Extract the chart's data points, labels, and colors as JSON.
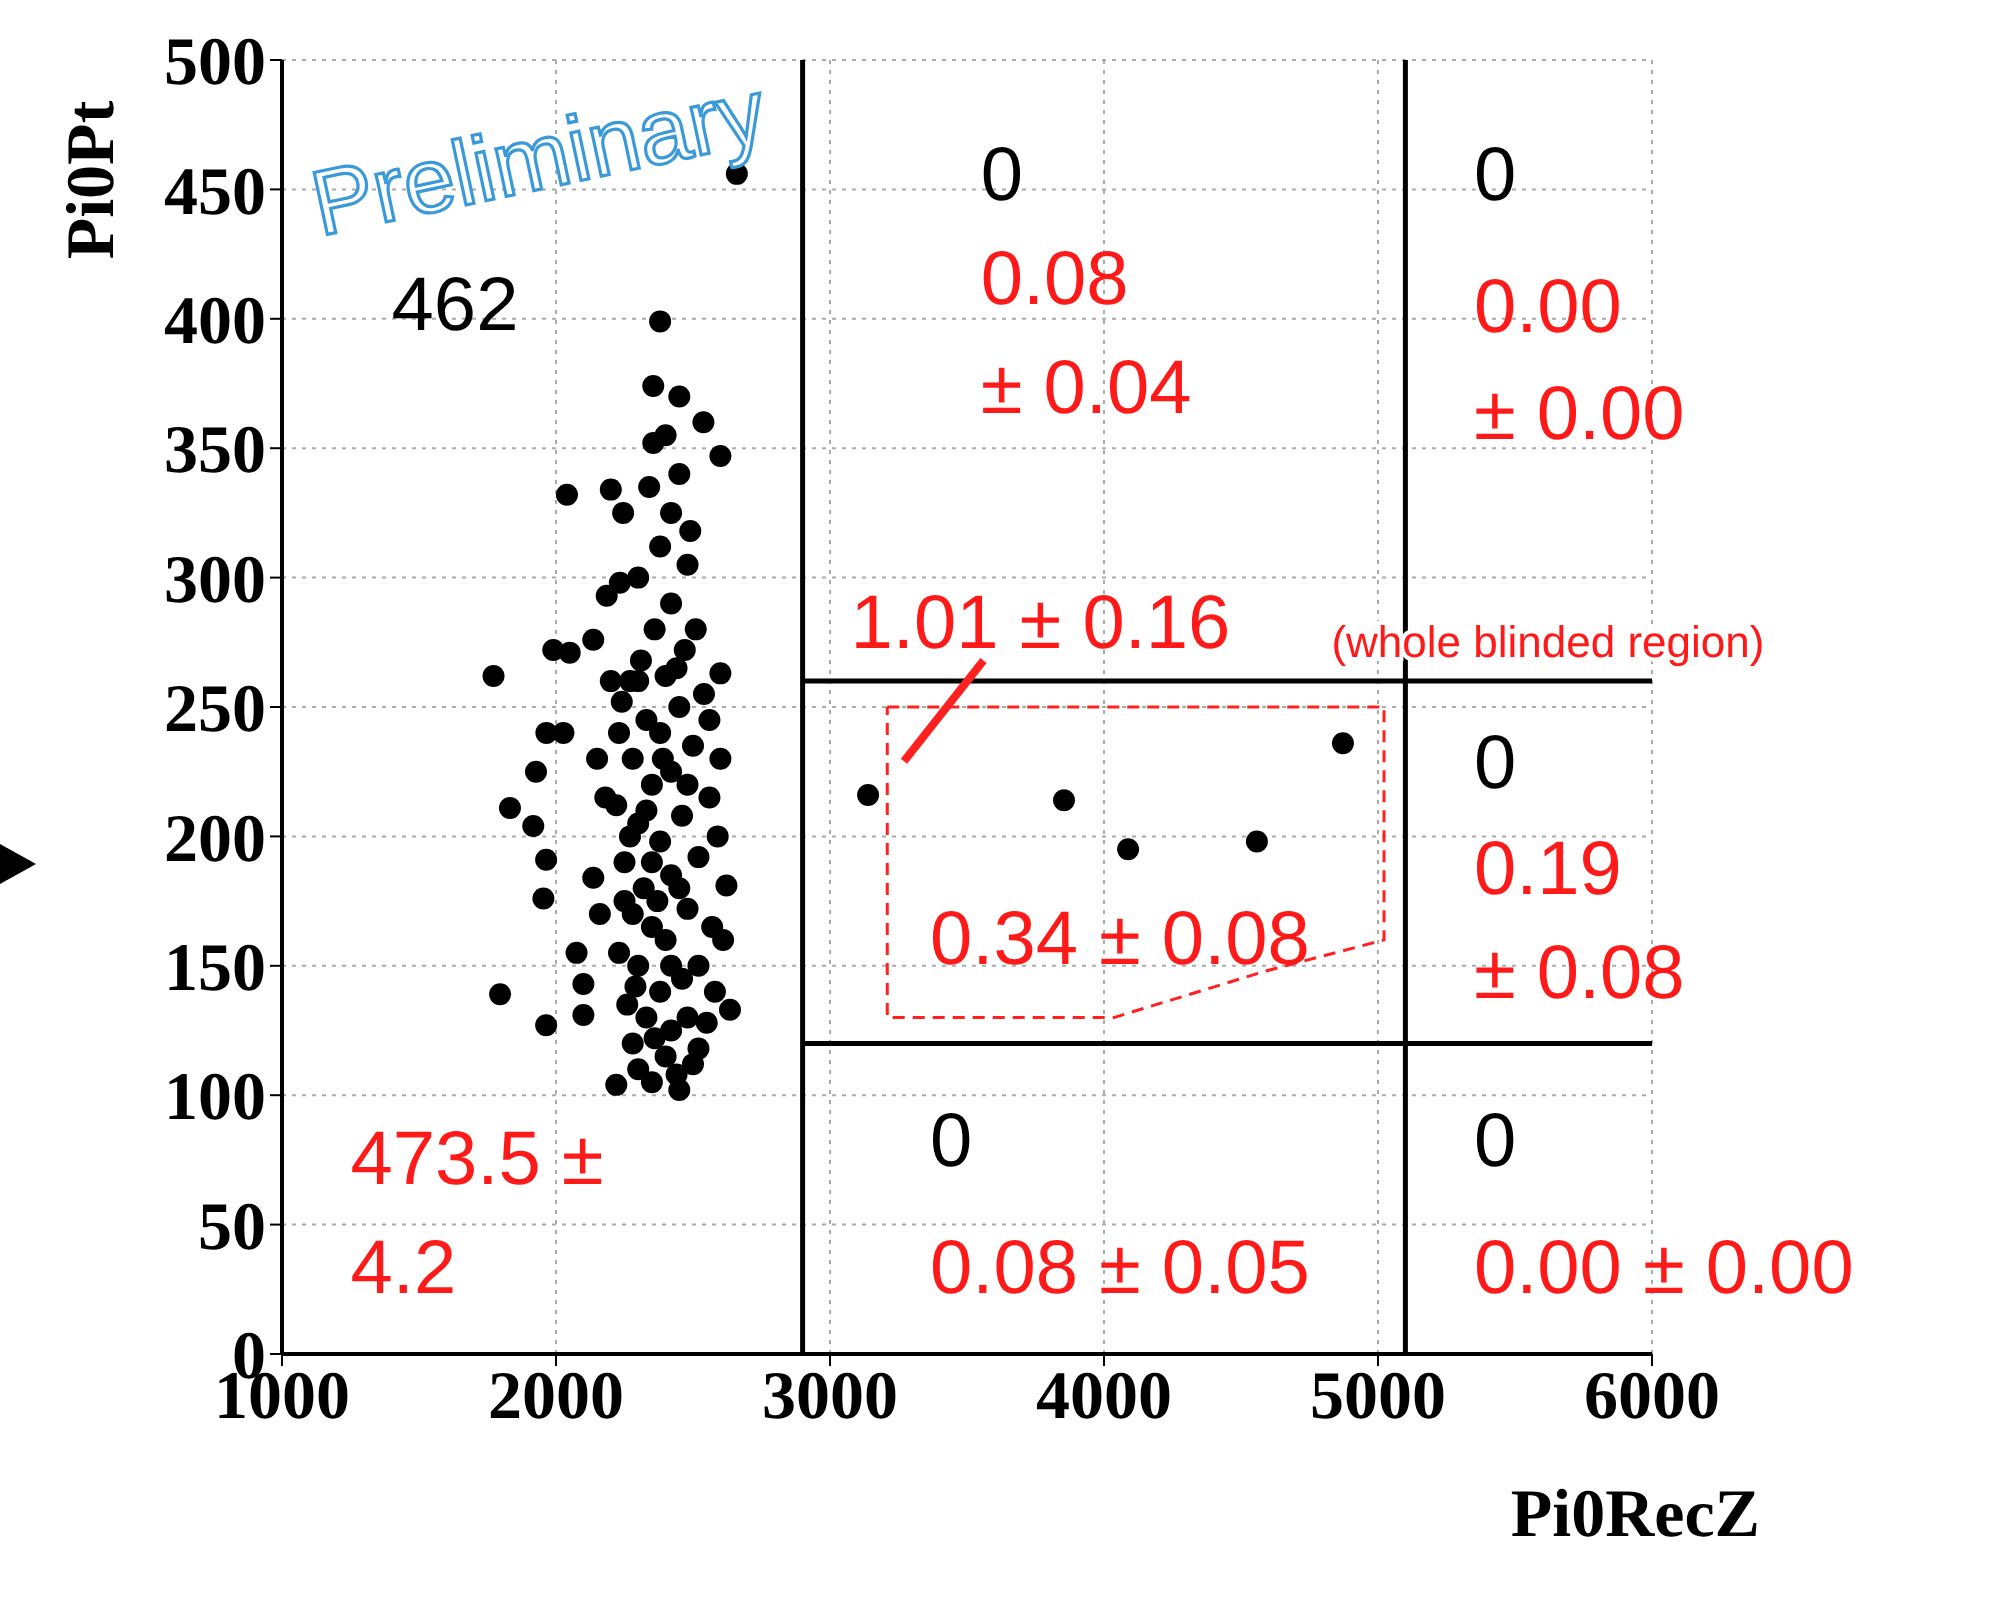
{
  "chart_data": {
    "type": "scatter",
    "xlabel": "Pi0RecZ",
    "ylabel": "Pi0Pt",
    "xlim": [
      1000,
      6000
    ],
    "xticks": [
      1000,
      2000,
      3000,
      4000,
      5000,
      6000
    ],
    "ylim": [
      0,
      500
    ],
    "yticks": [
      0,
      50,
      100,
      150,
      200,
      250,
      300,
      350,
      400,
      450,
      500
    ],
    "grid": true,
    "marker": "circle",
    "series": [
      {
        "color": "#000000",
        "x": [
          2660,
          2380,
          2355,
          2538,
          2355,
          2600,
          2040,
          2200,
          2245,
          2490,
          2185,
          2233,
          1772,
          1990,
          2050,
          1965,
          2027,
          1832,
          1927,
          1917,
          1964,
          1954,
          1796,
          1964,
          2100,
          2100,
          2075,
          2136,
          2622,
          2635,
          2600,
          2600,
          2220,
          2450,
          2136,
          2300,
          2350,
          2400,
          2280,
          2500,
          2420,
          2330,
          2260,
          2550,
          2380,
          2460,
          2300,
          2230,
          2520,
          2400,
          2350,
          2280,
          2480,
          2570,
          2320,
          2420,
          2250,
          2520,
          2380,
          2300,
          2460,
          2220,
          2560,
          2350,
          2420,
          2280,
          2500,
          2380,
          2330,
          2450,
          2240,
          2540,
          2400,
          2310,
          2470,
          2360,
          2420,
          2300,
          2480,
          2380,
          2420,
          2340,
          2450,
          2400,
          2450,
          2270,
          2270,
          2480,
          2360,
          2440,
          2580,
          2590,
          2230,
          2510,
          2350,
          2450,
          2300,
          2560,
          2390,
          2330,
          2480,
          2250,
          2420,
          2520,
          2290,
          2370,
          2440,
          2610,
          2200,
          2180,
          2160,
          2150,
          3139,
          3854,
          4088,
          4558,
          4872
        ],
        "values": [
          456,
          399,
          374,
          360,
          352,
          347,
          332,
          334,
          325,
          318,
          293,
          298,
          262,
          272,
          271,
          240,
          240,
          211,
          225,
          204,
          191,
          176,
          139,
          127,
          131,
          143,
          155,
          184,
          181,
          133,
          263,
          230,
          104,
          102,
          276,
          110,
          105,
          115,
          120,
          112,
          125,
          130,
          135,
          128,
          140,
          145,
          150,
          155,
          150,
          160,
          165,
          170,
          172,
          165,
          180,
          185,
          190,
          192,
          198,
          205,
          208,
          212,
          215,
          220,
          225,
          230,
          235,
          240,
          245,
          250,
          252,
          255,
          262,
          268,
          272,
          280,
          290,
          300,
          305,
          312,
          325,
          335,
          340,
          355,
          370,
          260,
          200,
          130,
          122,
          108,
          140,
          200,
          240,
          280,
          190,
          180,
          260,
          245,
          230,
          210,
          220,
          175,
          150,
          118,
          142,
          175,
          265,
          160,
          260,
          215,
          170,
          230,
          216,
          214,
          195,
          198,
          236
        ]
      }
    ],
    "ref_lines": [
      {
        "axis": "x",
        "value": 2900
      },
      {
        "axis": "x",
        "value": 5100
      },
      {
        "axis": "y",
        "value": 260
      },
      {
        "axis": "y",
        "value": 120
      }
    ],
    "annotations": [
      "Preliminary",
      "462",
      "473.5 ±",
      "4.2",
      "0",
      "0.08",
      "± 0.04",
      "0",
      "0.00",
      "± 0.00",
      "1.01 ± 0.16",
      "(whole blinded region)",
      "0.34 ± 0.08",
      "0",
      "0.19",
      "± 0.08",
      "0",
      "0.08 ± 0.05",
      "0",
      "0.00 ± 0.00"
    ]
  }
}
